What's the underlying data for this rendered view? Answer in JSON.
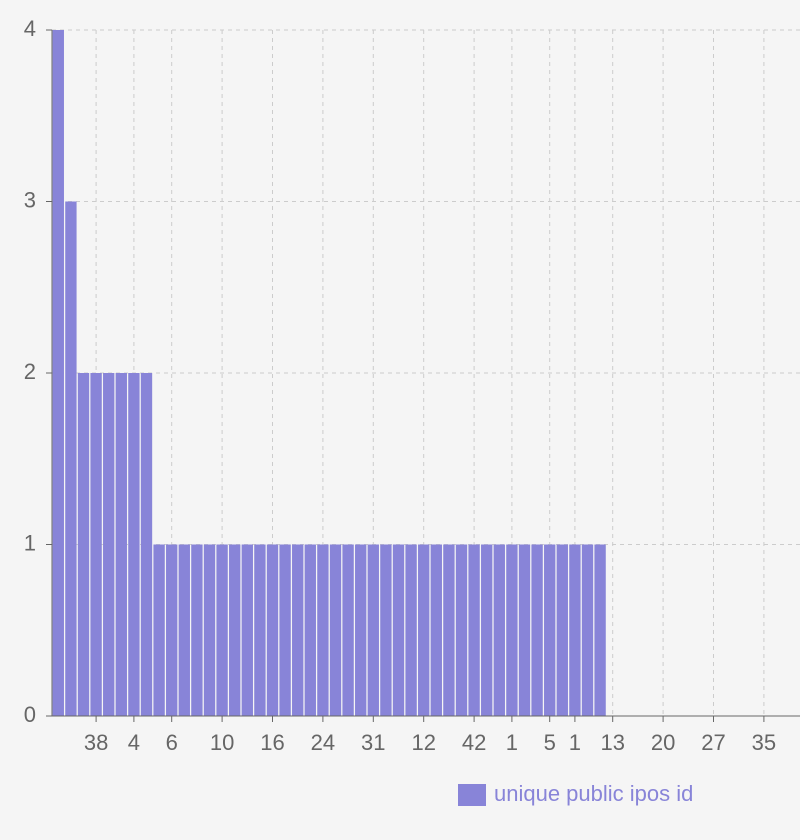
{
  "chart_data": {
    "type": "bar",
    "categories": [
      null,
      null,
      null,
      "38",
      null,
      null,
      "4",
      null,
      null,
      "6",
      null,
      null,
      null,
      "10",
      null,
      null,
      null,
      "16",
      null,
      null,
      null,
      "24",
      null,
      null,
      null,
      "31",
      null,
      null,
      null,
      "12",
      null,
      null,
      null,
      "42",
      null,
      null,
      "1",
      null,
      null,
      "5",
      null,
      "1",
      null,
      null,
      "13",
      null,
      null,
      null,
      "20",
      null,
      null,
      null,
      "27",
      null,
      null,
      null,
      "35",
      null,
      null
    ],
    "series": [
      {
        "name": "unique public ipos id",
        "color": "#8884d8",
        "values": [
          4,
          3,
          2,
          2,
          2,
          2,
          2,
          2,
          1,
          1,
          1,
          1,
          1,
          1,
          1,
          1,
          1,
          1,
          1,
          1,
          1,
          1,
          1,
          1,
          1,
          1,
          1,
          1,
          1,
          1,
          1,
          1,
          1,
          1,
          1,
          1,
          1,
          1,
          1,
          1,
          1,
          1,
          1,
          1,
          0,
          0,
          0,
          0,
          0,
          0,
          0,
          0,
          0,
          0,
          0,
          0,
          0,
          0,
          0
        ]
      }
    ],
    "ylim": [
      0,
      4
    ],
    "yticks": [
      0,
      1,
      2,
      3,
      4
    ],
    "grid": true,
    "legend": "bottom"
  }
}
